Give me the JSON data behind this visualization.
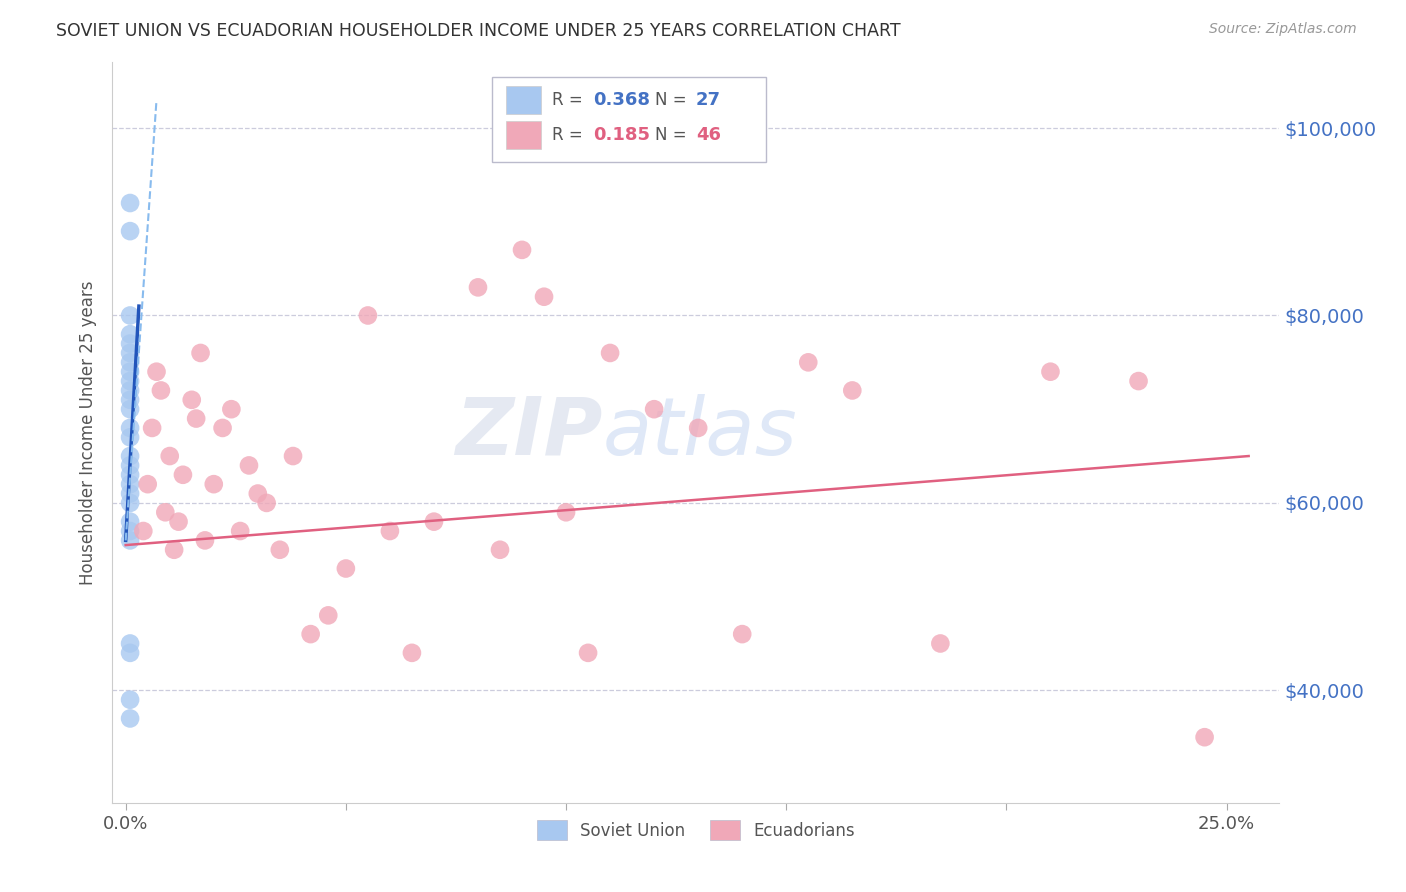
{
  "title": "SOVIET UNION VS ECUADORIAN HOUSEHOLDER INCOME UNDER 25 YEARS CORRELATION CHART",
  "source": "Source: ZipAtlas.com",
  "ylabel": "Householder Income Under 25 years",
  "xlabel_ticks": [
    "0.0%",
    "25.0%"
  ],
  "xlabel_vals": [
    0.0,
    0.25
  ],
  "ytick_labels": [
    "$40,000",
    "$60,000",
    "$80,000",
    "$100,000"
  ],
  "ytick_vals": [
    40000,
    60000,
    80000,
    100000
  ],
  "ylim": [
    28000,
    107000
  ],
  "xlim": [
    -0.003,
    0.262
  ],
  "legend_r1_val": "0.368",
  "legend_n1_val": "27",
  "legend_r2_val": "0.185",
  "legend_n2_val": "46",
  "soviet_color": "#a8c8f0",
  "ecuadorian_color": "#f0a8b8",
  "trendline_soviet_solid_color": "#2255bb",
  "trendline_soviet_dash_color": "#88bbee",
  "trendline_ecuadorian_color": "#e06080",
  "background_color": "#ffffff",
  "grid_color": "#ccccdd",
  "watermark_zip": "ZIP",
  "watermark_atlas": "atlas",
  "axis_text_color": "#4472c4",
  "label_color": "#555555",
  "soviet_x": [
    0.001,
    0.001,
    0.001,
    0.001,
    0.001,
    0.001,
    0.001,
    0.001,
    0.001,
    0.001,
    0.001,
    0.001,
    0.001,
    0.001,
    0.001,
    0.001,
    0.001,
    0.001,
    0.001,
    0.001,
    0.001,
    0.001,
    0.001,
    0.001,
    0.001,
    0.001,
    0.001
  ],
  "soviet_y": [
    92000,
    89000,
    80000,
    78000,
    77000,
    76000,
    75000,
    74000,
    73000,
    72000,
    71000,
    70000,
    68000,
    67000,
    65000,
    64000,
    63000,
    62000,
    61000,
    60000,
    58000,
    57000,
    56000,
    45000,
    44000,
    39000,
    37000
  ],
  "ecu_x": [
    0.004,
    0.005,
    0.006,
    0.007,
    0.008,
    0.009,
    0.01,
    0.011,
    0.012,
    0.013,
    0.015,
    0.016,
    0.017,
    0.018,
    0.02,
    0.022,
    0.024,
    0.026,
    0.028,
    0.03,
    0.032,
    0.035,
    0.038,
    0.042,
    0.046,
    0.05,
    0.055,
    0.06,
    0.065,
    0.07,
    0.08,
    0.085,
    0.09,
    0.095,
    0.1,
    0.105,
    0.11,
    0.12,
    0.13,
    0.14,
    0.155,
    0.165,
    0.185,
    0.21,
    0.23,
    0.245
  ],
  "ecu_y": [
    57000,
    62000,
    68000,
    74000,
    72000,
    59000,
    65000,
    55000,
    58000,
    63000,
    71000,
    69000,
    76000,
    56000,
    62000,
    68000,
    70000,
    57000,
    64000,
    61000,
    60000,
    55000,
    65000,
    46000,
    48000,
    53000,
    80000,
    57000,
    44000,
    58000,
    83000,
    55000,
    87000,
    82000,
    59000,
    44000,
    76000,
    70000,
    68000,
    46000,
    75000,
    72000,
    45000,
    74000,
    73000,
    35000
  ]
}
